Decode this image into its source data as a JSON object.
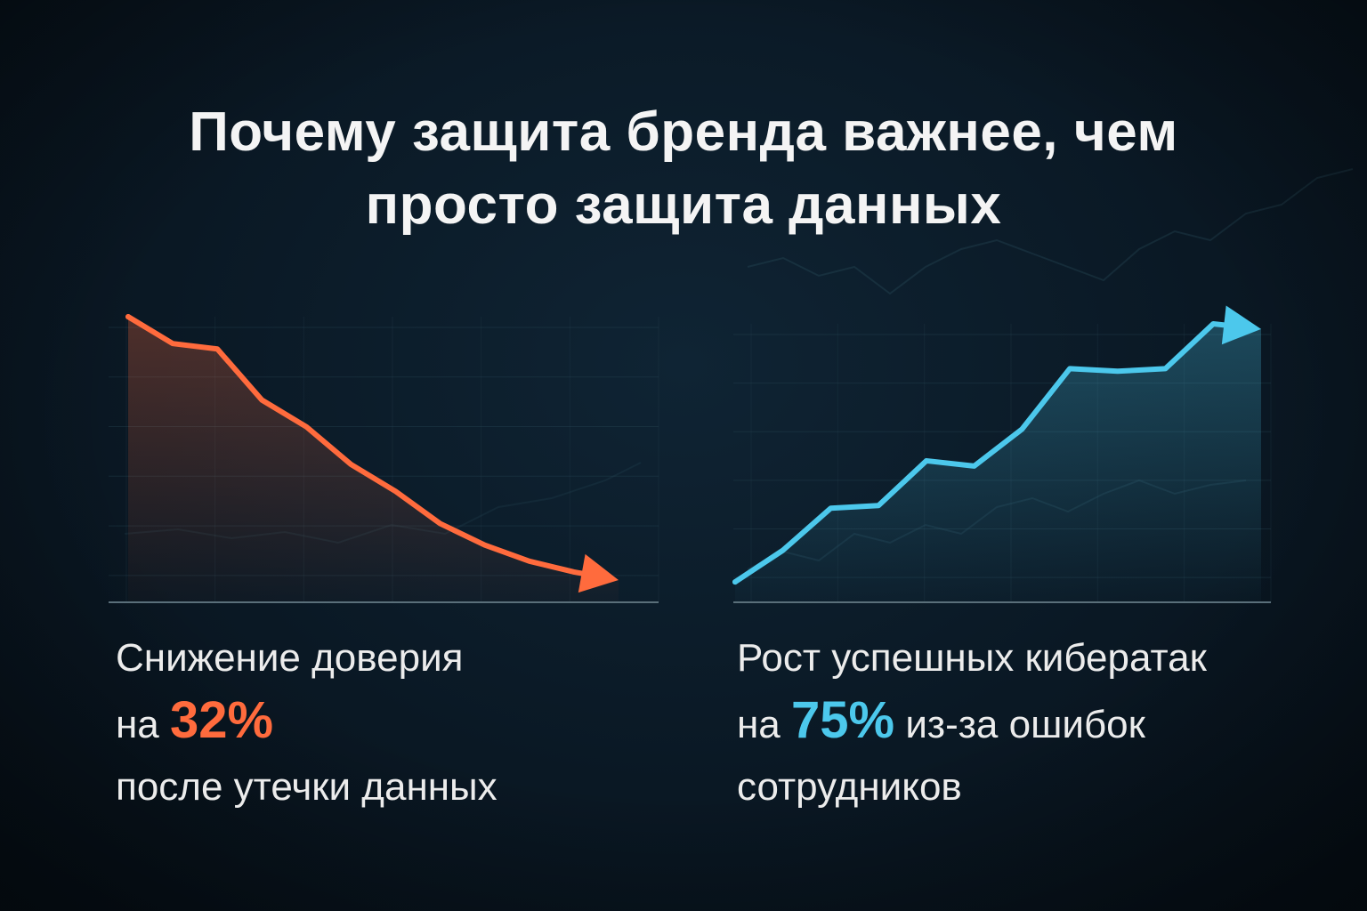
{
  "title": {
    "line1": "Почему защита бренда важнее, чем",
    "line2": "просто защита данных"
  },
  "left_caption": {
    "line1": "Снижение доверия",
    "prefix": "на",
    "value": "32%",
    "line3": "после утечки данных"
  },
  "right_caption": {
    "line1": "Рост успешных кибератак",
    "prefix": "на",
    "value": "75%",
    "suffix": "из-за ошибок",
    "line3": "сотрудников"
  },
  "colors": {
    "decline": "#ff6b3d",
    "growth": "#4cc8ec",
    "background": "#0a1824"
  },
  "chart_data": [
    {
      "type": "line",
      "title": "",
      "xlabel": "",
      "ylabel": "",
      "x": [
        0,
        1,
        2,
        3,
        4,
        5,
        6,
        7,
        8,
        9,
        10,
        11
      ],
      "series": [
        {
          "values": [
            100,
            90,
            88,
            69,
            59,
            45,
            35,
            23,
            15,
            9,
            5,
            2
          ]
        }
      ],
      "ylim": [
        0,
        100
      ],
      "grid": true,
      "trend": "down",
      "arrow": true
    },
    {
      "type": "line",
      "title": "",
      "xlabel": "",
      "ylabel": "",
      "x": [
        0,
        1,
        2,
        3,
        4,
        5,
        6,
        7,
        8,
        9,
        10,
        11
      ],
      "series": [
        {
          "values": [
            2,
            14,
            30,
            31,
            48,
            46,
            60,
            83,
            82,
            83,
            100,
            98
          ]
        }
      ],
      "ylim": [
        0,
        100
      ],
      "grid": true,
      "trend": "up",
      "arrow": true
    }
  ]
}
